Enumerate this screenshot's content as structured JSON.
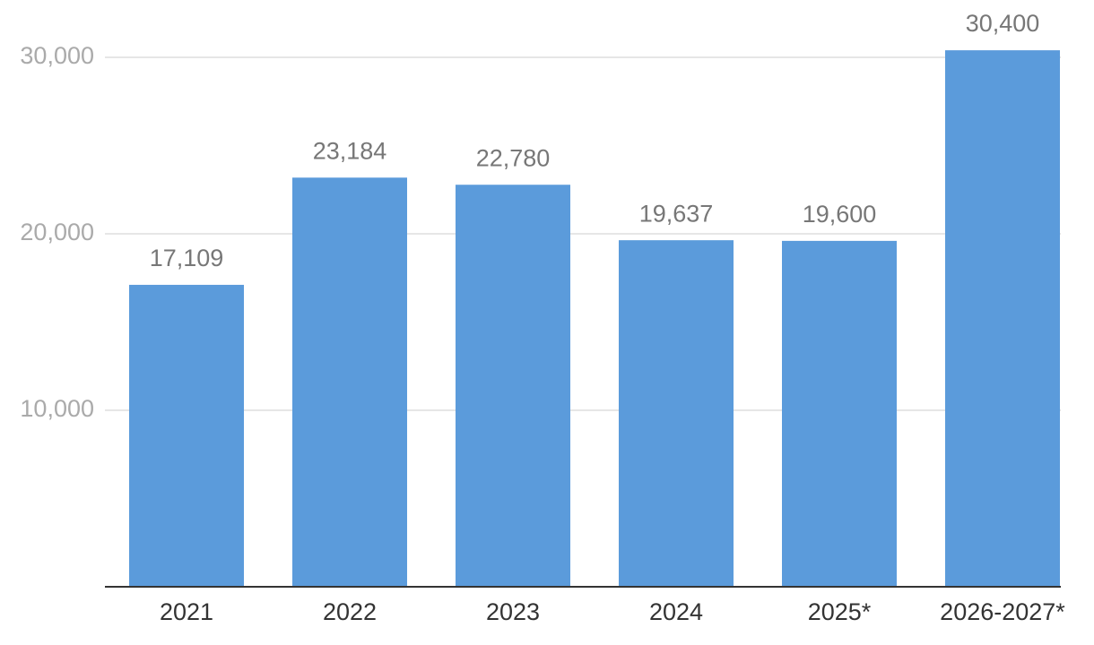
{
  "chart_data": {
    "type": "bar",
    "categories": [
      "2021",
      "2022",
      "2023",
      "2024",
      "2025*",
      "2026-2027*"
    ],
    "values": [
      17109,
      23184,
      22780,
      19637,
      19600,
      30400
    ],
    "value_labels": [
      "17,109",
      "23,184",
      "22,780",
      "19,637",
      "19,600",
      "30,400"
    ],
    "color": "#5b9bdb",
    "ylim": [
      0,
      30000
    ],
    "yticks": [
      {
        "value": 10000,
        "label": "10,000"
      },
      {
        "value": 20000,
        "label": "20,000"
      },
      {
        "value": 30000,
        "label": "30,000"
      }
    ],
    "grid": true
  }
}
